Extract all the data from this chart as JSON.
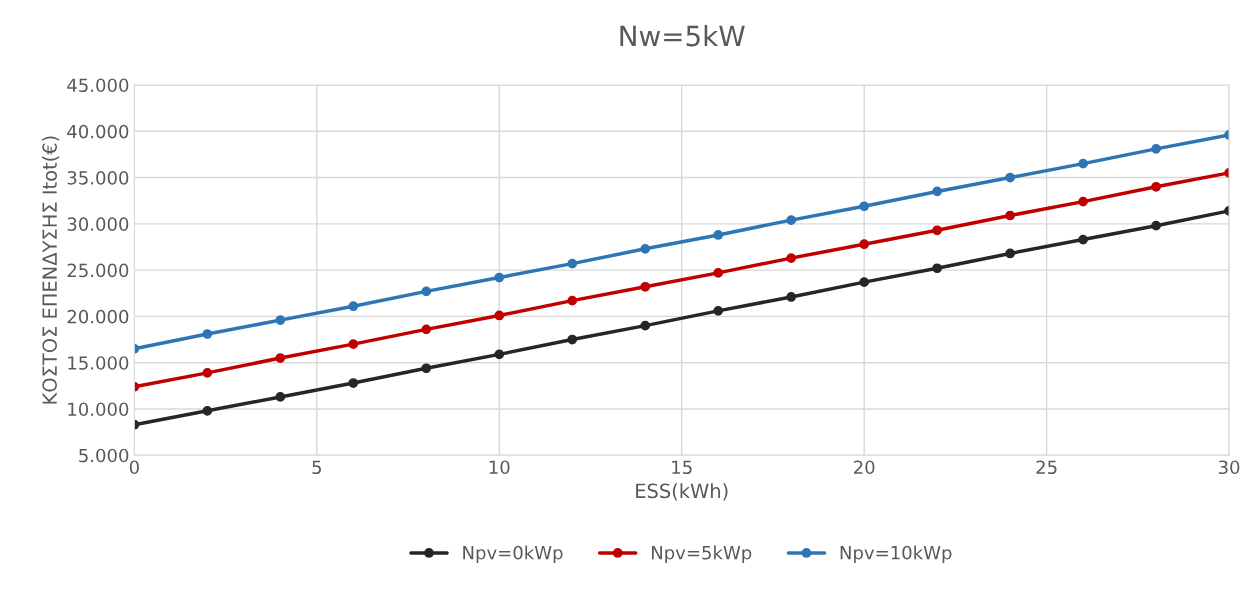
{
  "chart_data": {
    "type": "line",
    "title": "Nw=5kW",
    "xlabel": "ESS(kWh)",
    "ylabel": "ΚΟΣΤΟΣ ΕΠΕΝΔΥΣΗΣ Itot(€)",
    "x": [
      0,
      2,
      4,
      6,
      8,
      10,
      12,
      14,
      16,
      18,
      20,
      22,
      24,
      26,
      28,
      30
    ],
    "series": [
      {
        "name": "Npv=0kWp",
        "color": "#262626",
        "values": [
          8300,
          9800,
          11300,
          12800,
          14400,
          15900,
          17500,
          19000,
          20600,
          22100,
          23700,
          25200,
          26800,
          28300,
          29800,
          31400
        ]
      },
      {
        "name": "Npv=5kWp",
        "color": "#c00000",
        "values": [
          12400,
          13900,
          15500,
          17000,
          18600,
          20100,
          21700,
          23200,
          24700,
          26300,
          27800,
          29300,
          30900,
          32400,
          34000,
          35500
        ]
      },
      {
        "name": "Npv=10kWp",
        "color": "#2e75b6",
        "values": [
          16500,
          18100,
          19600,
          21100,
          22700,
          24200,
          25700,
          27300,
          28800,
          30400,
          31900,
          33500,
          35000,
          36500,
          38100,
          39600
        ]
      }
    ],
    "xlim": [
      0,
      30
    ],
    "xticks": [
      0,
      5,
      10,
      15,
      20,
      25,
      30
    ],
    "ylim": [
      5000,
      45000
    ],
    "yticks": [
      {
        "value": 5000,
        "label": "5.000"
      },
      {
        "value": 10000,
        "label": "10.000"
      },
      {
        "value": 15000,
        "label": "15.000"
      },
      {
        "value": 20000,
        "label": "20.000"
      },
      {
        "value": 25000,
        "label": "25.000"
      },
      {
        "value": 30000,
        "label": "30.000"
      },
      {
        "value": 35000,
        "label": "35.000"
      },
      {
        "value": 40000,
        "label": "40.000"
      },
      {
        "value": 45000,
        "label": "45.000"
      }
    ],
    "grid": true,
    "legend": "bottom",
    "marker": "circle",
    "line_style": "solid"
  }
}
